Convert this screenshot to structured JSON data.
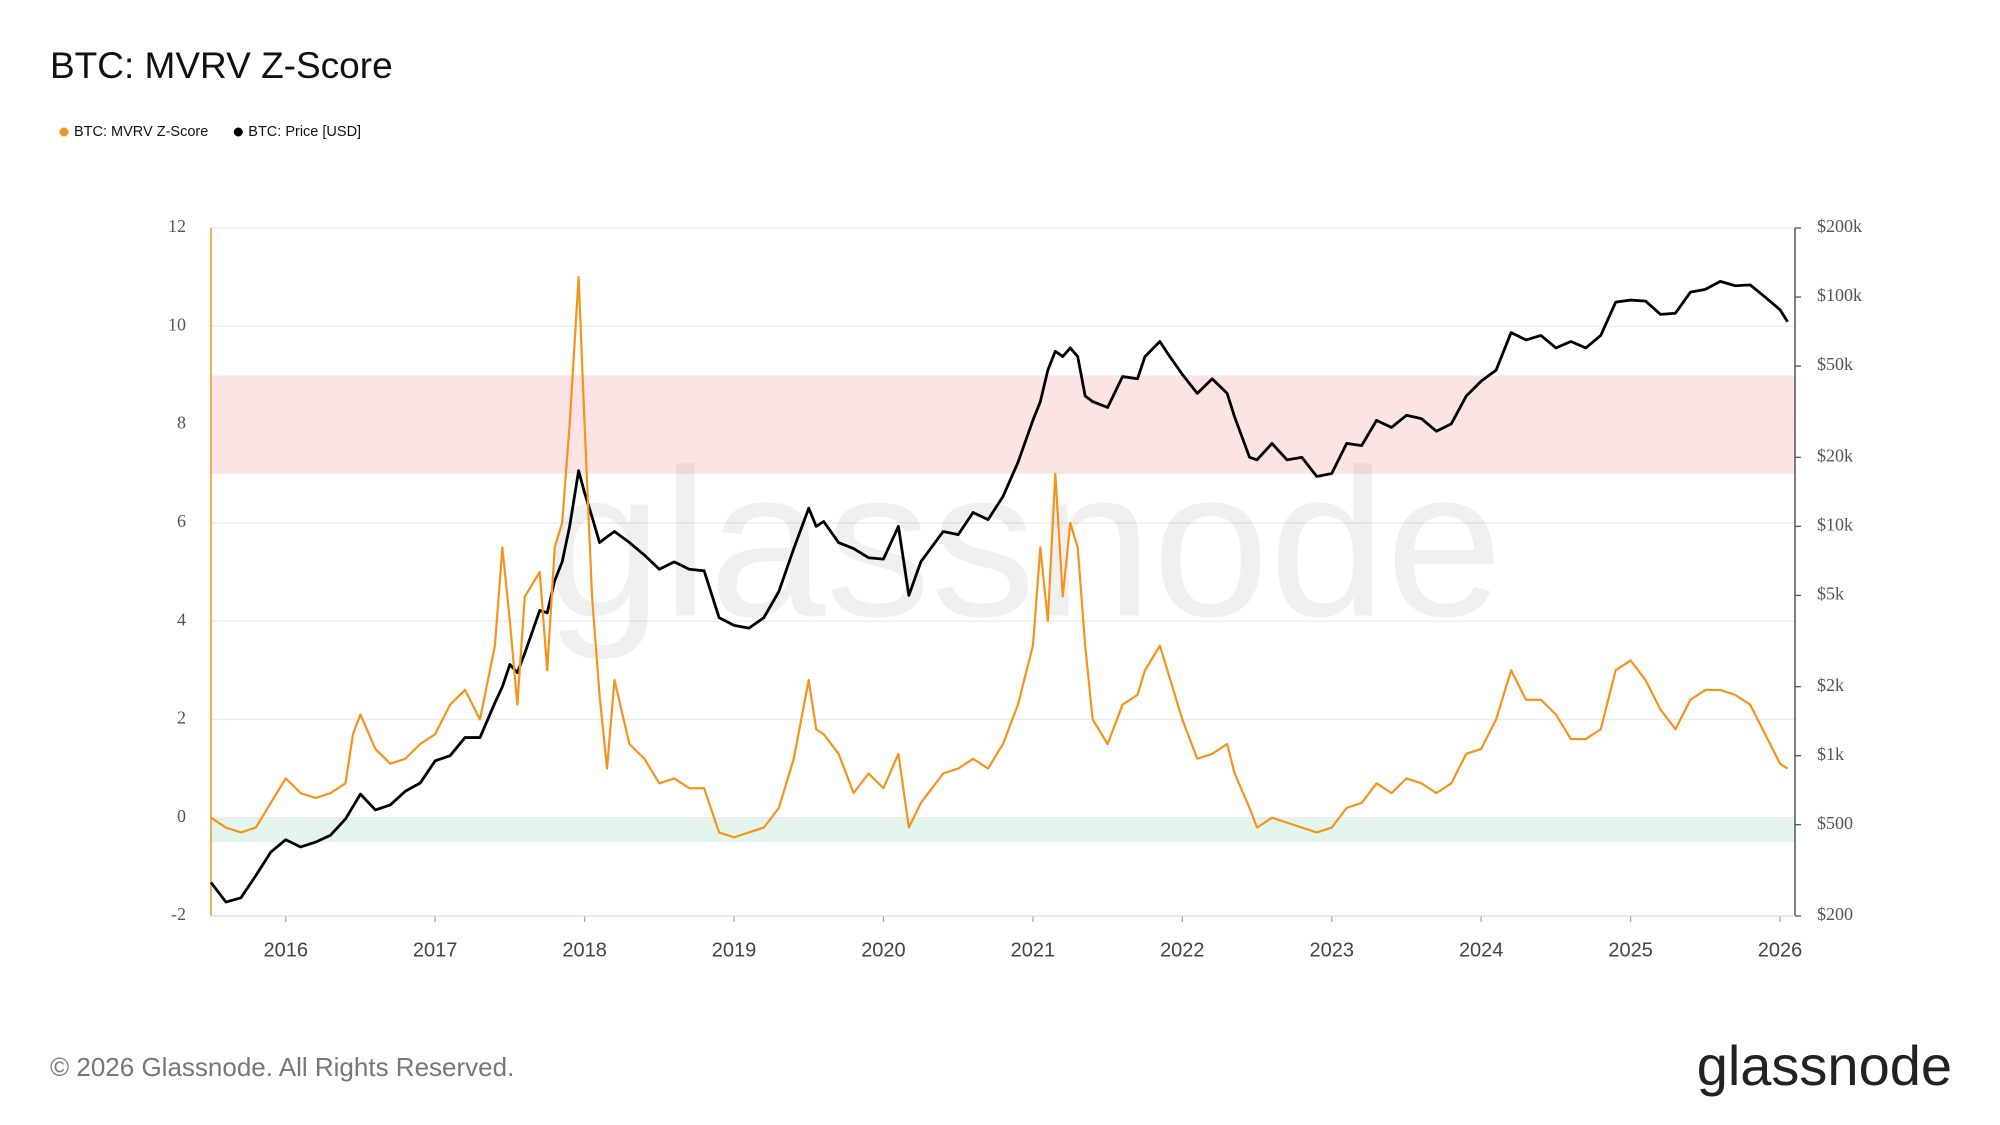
{
  "chart_data": {
    "type": "line",
    "title": "BTC: MVRV Z-Score",
    "x": [
      2015.5,
      2015.6,
      2015.7,
      2015.8,
      2015.9,
      2016.0,
      2016.1,
      2016.2,
      2016.3,
      2016.4,
      2016.45,
      2016.5,
      2016.6,
      2016.7,
      2016.8,
      2016.9,
      2017.0,
      2017.1,
      2017.2,
      2017.3,
      2017.4,
      2017.45,
      2017.5,
      2017.55,
      2017.6,
      2017.7,
      2017.75,
      2017.8,
      2017.85,
      2017.9,
      2017.96,
      2018.0,
      2018.05,
      2018.1,
      2018.15,
      2018.2,
      2018.3,
      2018.4,
      2018.5,
      2018.6,
      2018.7,
      2018.8,
      2018.9,
      2019.0,
      2019.1,
      2019.2,
      2019.3,
      2019.4,
      2019.5,
      2019.55,
      2019.6,
      2019.7,
      2019.8,
      2019.9,
      2020.0,
      2020.1,
      2020.17,
      2020.25,
      2020.4,
      2020.5,
      2020.6,
      2020.7,
      2020.8,
      2020.9,
      2021.0,
      2021.05,
      2021.1,
      2021.15,
      2021.2,
      2021.25,
      2021.3,
      2021.35,
      2021.4,
      2021.5,
      2021.6,
      2021.7,
      2021.75,
      2021.85,
      2021.9,
      2022.0,
      2022.1,
      2022.2,
      2022.3,
      2022.35,
      2022.45,
      2022.5,
      2022.6,
      2022.7,
      2022.8,
      2022.9,
      2023.0,
      2023.1,
      2023.2,
      2023.3,
      2023.4,
      2023.5,
      2023.6,
      2023.7,
      2023.8,
      2023.9,
      2024.0,
      2024.1,
      2024.2,
      2024.3,
      2024.4,
      2024.5,
      2024.6,
      2024.7,
      2024.8,
      2024.9,
      2025.0,
      2025.1,
      2025.2,
      2025.3,
      2025.4,
      2025.5,
      2025.6,
      2025.7,
      2025.8,
      2025.9,
      2026.0,
      2026.05
    ],
    "series": [
      {
        "name": "BTC: MVRV Z-Score",
        "color": "#f7931a",
        "values": [
          0.0,
          -0.2,
          -0.3,
          -0.2,
          0.3,
          0.8,
          0.5,
          0.4,
          0.5,
          0.7,
          1.7,
          2.1,
          1.4,
          1.1,
          1.2,
          1.5,
          1.7,
          2.3,
          2.6,
          2.0,
          3.5,
          5.5,
          4.0,
          2.3,
          4.5,
          5.0,
          3.0,
          5.5,
          6.0,
          8.0,
          11.0,
          8.0,
          4.5,
          2.5,
          1.0,
          2.8,
          1.5,
          1.2,
          0.7,
          0.8,
          0.6,
          0.6,
          -0.3,
          -0.4,
          -0.3,
          -0.2,
          0.2,
          1.2,
          2.8,
          1.8,
          1.7,
          1.3,
          0.5,
          0.9,
          0.6,
          1.3,
          -0.2,
          0.3,
          0.9,
          1.0,
          1.2,
          1.0,
          1.5,
          2.3,
          3.5,
          5.5,
          4.0,
          7.0,
          4.5,
          6.0,
          5.5,
          3.5,
          2.0,
          1.5,
          2.3,
          2.5,
          3.0,
          3.5,
          3.0,
          2.0,
          1.2,
          1.3,
          1.5,
          0.9,
          0.2,
          -0.2,
          0.0,
          -0.1,
          -0.2,
          -0.3,
          -0.2,
          0.2,
          0.3,
          0.7,
          0.5,
          0.8,
          0.7,
          0.5,
          0.7,
          1.3,
          1.4,
          2.0,
          3.0,
          2.4,
          2.4,
          2.1,
          1.6,
          1.6,
          1.8,
          3.0,
          3.2,
          2.8,
          2.2,
          1.8,
          2.4,
          2.6,
          2.6,
          2.5,
          2.3,
          1.7,
          1.1,
          1.0
        ]
      },
      {
        "name": "BTC: Price [USD]",
        "color": "#000000",
        "axis": "y2",
        "values": [
          280,
          230,
          240,
          300,
          380,
          430,
          400,
          420,
          450,
          530,
          600,
          680,
          580,
          610,
          700,
          760,
          950,
          1000,
          1200,
          1200,
          1700,
          2000,
          2500,
          2300,
          2800,
          4300,
          4200,
          5800,
          7000,
          10000,
          17500,
          14000,
          11000,
          8500,
          9000,
          9500,
          8500,
          7500,
          6500,
          7000,
          6500,
          6400,
          4000,
          3700,
          3600,
          4000,
          5200,
          8000,
          12000,
          10000,
          10500,
          8500,
          8000,
          7300,
          7200,
          10000,
          5000,
          7000,
          9500,
          9200,
          11500,
          10700,
          13500,
          19000,
          29000,
          35000,
          48000,
          58000,
          55000,
          60000,
          55000,
          37000,
          35000,
          33000,
          45000,
          44000,
          55000,
          64000,
          57000,
          46000,
          38000,
          44000,
          38000,
          30000,
          20000,
          19500,
          23000,
          19500,
          20000,
          16500,
          17000,
          23000,
          22500,
          29000,
          27000,
          30500,
          29500,
          26000,
          28000,
          37000,
          43000,
          48000,
          70000,
          65000,
          68000,
          60000,
          64000,
          60000,
          68000,
          95000,
          97000,
          96000,
          84000,
          85000,
          105000,
          108000,
          117000,
          112000,
          113000,
          100000,
          88000,
          78000
        ]
      }
    ],
    "xlim": [
      2015.5,
      2026.1
    ],
    "xticks": [
      2016,
      2017,
      2018,
      2019,
      2020,
      2021,
      2022,
      2023,
      2024,
      2025,
      2026
    ],
    "ylim": [
      -2,
      12
    ],
    "yticks": [
      -2,
      0,
      2,
      4,
      6,
      8,
      10,
      12
    ],
    "y2lim": [
      200,
      200000
    ],
    "y2scale": "log",
    "y2ticks": [
      {
        "value": 200,
        "label": "$200"
      },
      {
        "value": 500,
        "label": "$500"
      },
      {
        "value": 1000,
        "label": "$1k"
      },
      {
        "value": 2000,
        "label": "$2k"
      },
      {
        "value": 5000,
        "label": "$5k"
      },
      {
        "value": 10000,
        "label": "$10k"
      },
      {
        "value": 20000,
        "label": "$20k"
      },
      {
        "value": 50000,
        "label": "$50k"
      },
      {
        "value": 100000,
        "label": "$100k"
      },
      {
        "value": 200000,
        "label": "$200k"
      }
    ],
    "grid": true,
    "legend": "top-left",
    "bands": [
      {
        "from": 7,
        "to": 9,
        "color": "#fce4e4"
      },
      {
        "from": -0.5,
        "to": 0,
        "color": "#e4f5ed"
      }
    ]
  },
  "watermark": "glassnode",
  "copyright": "© 2026 Glassnode. All Rights Reserved.",
  "logo": "glassnode"
}
